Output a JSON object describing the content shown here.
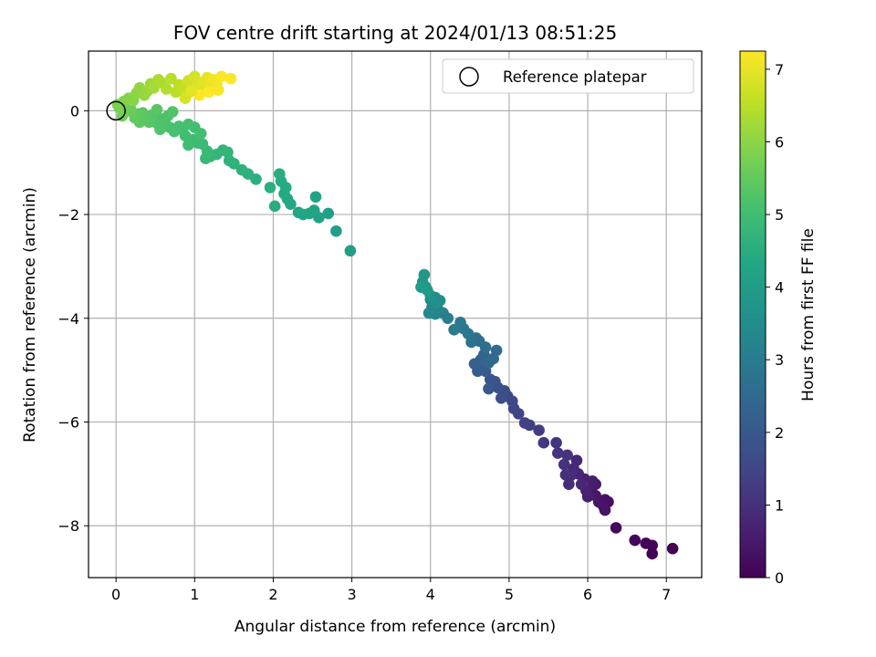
{
  "chart_data": {
    "type": "scatter",
    "title": "FOV centre drift starting at 2024/01/13 08:51:25",
    "xlabel": "Angular distance from reference (arcmin)",
    "ylabel": "Rotation from reference (arcmin)",
    "xlim": [
      -0.35,
      7.45
    ],
    "ylim": [
      -9.0,
      1.15
    ],
    "xticks": [
      0,
      1,
      2,
      3,
      4,
      5,
      6,
      7
    ],
    "yticks": [
      -8,
      -6,
      -4,
      -2,
      0
    ],
    "xtick_labels": [
      "0",
      "1",
      "2",
      "3",
      "4",
      "5",
      "6",
      "7"
    ],
    "ytick_labels": [
      "−8",
      "−6",
      "−4",
      "−2",
      "0"
    ],
    "grid": true,
    "colormap": "viridis",
    "colorbar": {
      "label": "Hours from first FF file",
      "range": [
        0,
        7.25
      ],
      "ticks": [
        0,
        1,
        2,
        3,
        4,
        5,
        6,
        7
      ],
      "tick_labels": [
        "0",
        "1",
        "2",
        "3",
        "4",
        "5",
        "6",
        "7"
      ]
    },
    "legend": {
      "position": "top-right",
      "entries": [
        "Reference platepar"
      ]
    },
    "reference": {
      "x": 0,
      "y": 0
    },
    "points": [
      [
        7.08,
        -8.44,
        0.0
      ],
      [
        6.82,
        -8.54,
        0.03
      ],
      [
        6.82,
        -8.38,
        0.06
      ],
      [
        6.74,
        -8.34,
        0.09
      ],
      [
        6.6,
        -8.28,
        0.12
      ],
      [
        6.36,
        -8.04,
        0.18
      ],
      [
        6.26,
        -7.54,
        0.28
      ],
      [
        6.22,
        -7.5,
        0.32
      ],
      [
        6.2,
        -7.62,
        0.35
      ],
      [
        6.22,
        -7.7,
        0.38
      ],
      [
        6.14,
        -7.54,
        0.42
      ],
      [
        6.1,
        -7.42,
        0.46
      ],
      [
        6.04,
        -7.3,
        0.5
      ],
      [
        6.1,
        -7.2,
        0.54
      ],
      [
        6.06,
        -7.14,
        0.58
      ],
      [
        6.0,
        -7.44,
        0.62
      ],
      [
        5.98,
        -7.32,
        0.66
      ],
      [
        5.96,
        -7.1,
        0.7
      ],
      [
        5.92,
        -7.2,
        0.74
      ],
      [
        5.88,
        -7.0,
        0.78
      ],
      [
        5.86,
        -6.74,
        0.82
      ],
      [
        5.82,
        -6.9,
        0.86
      ],
      [
        5.78,
        -7.04,
        0.9
      ],
      [
        5.76,
        -7.2,
        0.94
      ],
      [
        5.72,
        -7.02,
        0.98
      ],
      [
        5.7,
        -6.82,
        1.02
      ],
      [
        5.74,
        -6.64,
        1.06
      ],
      [
        5.62,
        -6.6,
        1.1
      ],
      [
        5.6,
        -6.4,
        1.14
      ],
      [
        5.44,
        -6.4,
        1.2
      ],
      [
        5.38,
        -6.16,
        1.26
      ],
      [
        5.26,
        -6.06,
        1.32
      ],
      [
        5.2,
        -6.02,
        1.38
      ],
      [
        5.12,
        -5.84,
        1.44
      ],
      [
        5.06,
        -5.74,
        1.5
      ],
      [
        5.04,
        -5.6,
        1.56
      ],
      [
        4.98,
        -5.5,
        1.62
      ],
      [
        4.94,
        -5.4,
        1.68
      ],
      [
        4.9,
        -5.54,
        1.74
      ],
      [
        4.86,
        -5.34,
        1.8
      ],
      [
        4.82,
        -5.22,
        1.86
      ],
      [
        4.76,
        -5.18,
        1.92
      ],
      [
        4.74,
        -5.36,
        1.98
      ],
      [
        4.7,
        -5.02,
        2.04
      ],
      [
        4.66,
        -4.98,
        2.1
      ],
      [
        4.6,
        -5.02,
        2.16
      ],
      [
        4.56,
        -4.88,
        2.22
      ],
      [
        4.64,
        -4.8,
        2.28
      ],
      [
        4.68,
        -4.7,
        2.34
      ],
      [
        4.74,
        -4.86,
        2.4
      ],
      [
        4.8,
        -4.78,
        2.46
      ],
      [
        4.84,
        -4.62,
        2.52
      ],
      [
        4.7,
        -4.56,
        2.58
      ],
      [
        4.62,
        -4.44,
        2.64
      ],
      [
        4.58,
        -4.38,
        2.7
      ],
      [
        4.52,
        -4.46,
        2.76
      ],
      [
        4.48,
        -4.3,
        2.82
      ],
      [
        4.42,
        -4.2,
        2.88
      ],
      [
        4.38,
        -4.08,
        2.94
      ],
      [
        4.3,
        -4.22,
        3.0
      ],
      [
        4.22,
        -4.0,
        3.06
      ],
      [
        4.16,
        -3.9,
        3.12
      ],
      [
        4.1,
        -3.84,
        3.18
      ],
      [
        4.06,
        -3.92,
        3.24
      ],
      [
        4.02,
        -3.78,
        3.3
      ],
      [
        3.98,
        -3.9,
        3.36
      ],
      [
        4.0,
        -3.64,
        3.42
      ],
      [
        4.06,
        -3.6,
        3.48
      ],
      [
        4.12,
        -3.66,
        3.54
      ],
      [
        4.08,
        -3.7,
        3.6
      ],
      [
        4.0,
        -3.56,
        3.66
      ],
      [
        3.94,
        -3.4,
        3.72
      ],
      [
        3.9,
        -3.3,
        3.78
      ],
      [
        3.92,
        -3.16,
        3.84
      ],
      [
        3.96,
        -3.46,
        3.9
      ],
      [
        3.88,
        -3.4,
        3.96
      ],
      [
        2.98,
        -2.7,
        4.05
      ],
      [
        2.8,
        -2.32,
        4.08
      ],
      [
        2.7,
        -1.98,
        4.11
      ],
      [
        2.58,
        -2.06,
        4.14
      ],
      [
        2.52,
        -1.92,
        4.17
      ],
      [
        2.54,
        -1.66,
        4.2
      ],
      [
        2.46,
        -1.98,
        4.23
      ],
      [
        2.38,
        -2.0,
        4.26
      ],
      [
        2.32,
        -1.96,
        4.29
      ],
      [
        2.22,
        -1.8,
        4.32
      ],
      [
        2.18,
        -1.7,
        4.35
      ],
      [
        2.14,
        -1.6,
        4.38
      ],
      [
        2.16,
        -1.48,
        4.41
      ],
      [
        2.1,
        -1.36,
        4.44
      ],
      [
        2.08,
        -1.22,
        4.47
      ],
      [
        2.02,
        -1.84,
        4.5
      ],
      [
        1.96,
        -1.48,
        4.53
      ],
      [
        1.78,
        -1.32,
        4.56
      ],
      [
        1.68,
        -1.22,
        4.59
      ],
      [
        1.6,
        -1.14,
        4.62
      ],
      [
        1.5,
        -1.02,
        4.65
      ],
      [
        1.44,
        -0.96,
        4.68
      ],
      [
        1.42,
        -0.8,
        4.71
      ],
      [
        1.36,
        -0.76,
        4.74
      ],
      [
        1.28,
        -0.84,
        4.77
      ],
      [
        1.2,
        -0.88,
        4.8
      ],
      [
        1.14,
        -0.92,
        4.83
      ],
      [
        1.16,
        -0.78,
        4.86
      ],
      [
        1.1,
        -0.64,
        4.89
      ],
      [
        1.04,
        -0.62,
        4.92
      ],
      [
        0.98,
        -0.56,
        4.95
      ],
      [
        0.92,
        -0.66,
        4.98
      ],
      [
        0.88,
        -0.48,
        5.01
      ],
      [
        0.84,
        -0.36,
        5.04
      ],
      [
        0.8,
        -0.3,
        5.07
      ],
      [
        0.74,
        -0.4,
        5.1
      ],
      [
        0.68,
        -0.32,
        5.13
      ],
      [
        0.62,
        -0.24,
        5.16
      ],
      [
        0.58,
        -0.16,
        5.19
      ],
      [
        0.56,
        -0.36,
        5.22
      ],
      [
        0.5,
        -0.22,
        5.25
      ],
      [
        0.46,
        -0.08,
        5.28
      ],
      [
        0.42,
        -0.22,
        5.31
      ],
      [
        0.38,
        -0.12,
        5.34
      ],
      [
        0.34,
        -0.04,
        5.37
      ],
      [
        0.3,
        -0.22,
        5.4
      ],
      [
        0.28,
        -0.06,
        5.43
      ],
      [
        0.24,
        -0.14,
        5.46
      ],
      [
        1.0,
        -0.32,
        5.0
      ],
      [
        1.08,
        -0.44,
        5.05
      ],
      [
        0.92,
        -0.26,
        5.1
      ],
      [
        0.66,
        -0.1,
        5.2
      ],
      [
        0.72,
        -0.02,
        5.25
      ],
      [
        0.52,
        0.02,
        5.35
      ],
      [
        0.2,
        -0.02,
        5.55
      ],
      [
        0.18,
        0.06,
        5.6
      ],
      [
        0.14,
        0.1,
        5.65
      ],
      [
        0.08,
        -0.1,
        5.7
      ],
      [
        0.04,
        0.06,
        5.75
      ],
      [
        0.02,
        0.12,
        5.8
      ],
      [
        0.1,
        0.18,
        5.85
      ],
      [
        0.16,
        0.24,
        5.9
      ],
      [
        0.22,
        0.2,
        5.95
      ],
      [
        0.26,
        0.34,
        6.0
      ],
      [
        0.3,
        0.44,
        6.05
      ],
      [
        0.36,
        0.3,
        6.1
      ],
      [
        0.4,
        0.38,
        6.15
      ],
      [
        0.44,
        0.52,
        6.2
      ],
      [
        0.48,
        0.44,
        6.25
      ],
      [
        0.54,
        0.6,
        6.3
      ],
      [
        0.58,
        0.54,
        6.35
      ],
      [
        0.64,
        0.42,
        6.4
      ],
      [
        0.7,
        0.62,
        6.45
      ],
      [
        0.76,
        0.36,
        6.5
      ],
      [
        0.8,
        0.5,
        6.55
      ],
      [
        0.86,
        0.44,
        6.6
      ],
      [
        0.9,
        0.32,
        6.65
      ],
      [
        0.92,
        0.58,
        6.7
      ],
      [
        0.96,
        0.48,
        6.75
      ],
      [
        1.0,
        0.66,
        6.8
      ],
      [
        1.04,
        0.52,
        6.85
      ],
      [
        1.08,
        0.4,
        6.9
      ],
      [
        1.12,
        0.56,
        6.95
      ],
      [
        1.16,
        0.64,
        7.0
      ],
      [
        1.2,
        0.48,
        7.05
      ],
      [
        1.24,
        0.6,
        7.1
      ],
      [
        1.28,
        0.52,
        7.14
      ],
      [
        1.3,
        0.4,
        7.18
      ],
      [
        1.34,
        0.66,
        7.2
      ],
      [
        1.46,
        0.62,
        7.22
      ],
      [
        1.18,
        0.36,
        7.24
      ],
      [
        1.06,
        0.3,
        7.25
      ],
      [
        0.88,
        0.24,
        6.8
      ],
      [
        0.96,
        0.38,
        6.95
      ]
    ]
  }
}
